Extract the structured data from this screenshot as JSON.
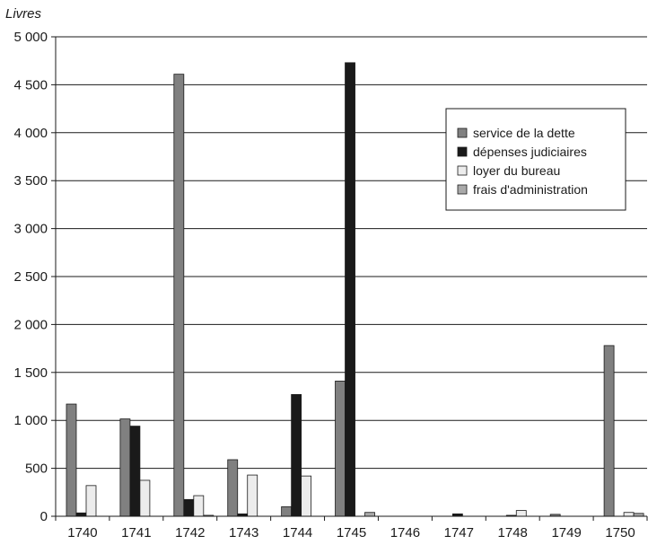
{
  "chart_data": {
    "type": "bar",
    "title": "",
    "xlabel": "",
    "ylabel": "Livres",
    "ylim": [
      0,
      5000
    ],
    "yticks": [
      0,
      500,
      1000,
      1500,
      2000,
      2500,
      3000,
      3500,
      4000,
      4500,
      5000
    ],
    "ytick_labels": [
      "0",
      "500",
      "1 000",
      "1 500",
      "2 000",
      "2 500",
      "3 000",
      "3 500",
      "4 000",
      "4 500",
      "5 000"
    ],
    "grid": "horizontal",
    "legend_position": "right",
    "categories": [
      "1740",
      "1741",
      "1742",
      "1743",
      "1744",
      "1745",
      "1746",
      "1747",
      "1748",
      "1749",
      "1750"
    ],
    "series": [
      {
        "name": "service de la dette",
        "color": "#808080",
        "values": [
          1170,
          1015,
          4610,
          590,
          100,
          1410,
          0,
          0,
          0,
          20,
          1780
        ]
      },
      {
        "name": "dépenses judiciaires",
        "color": "#1a1a1a",
        "values": [
          35,
          940,
          175,
          25,
          1270,
          4730,
          0,
          25,
          10,
          0,
          0
        ]
      },
      {
        "name": "loyer du bureau",
        "color": "#ececec",
        "values": [
          320,
          375,
          215,
          430,
          420,
          0,
          0,
          0,
          60,
          0,
          40
        ]
      },
      {
        "name": "frais d'administration",
        "color": "#a9a9a9",
        "values": [
          0,
          0,
          10,
          0,
          0,
          40,
          0,
          0,
          0,
          0,
          30
        ]
      }
    ]
  }
}
